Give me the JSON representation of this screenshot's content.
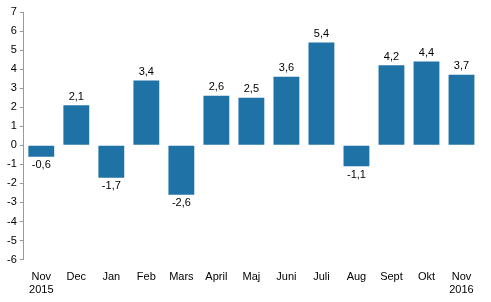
{
  "chart_data": {
    "type": "bar",
    "categories": [
      [
        "Nov",
        "2015"
      ],
      "Dec",
      "Jan",
      "Feb",
      "Mars",
      "April",
      "Maj",
      "Juni",
      "Juli",
      "Aug",
      "Sept",
      "Okt",
      [
        "Nov",
        "2016"
      ]
    ],
    "values": [
      -0.6,
      2.1,
      -1.7,
      3.4,
      -2.6,
      2.6,
      2.5,
      3.6,
      5.4,
      -1.1,
      4.2,
      4.4,
      3.7
    ],
    "value_labels": [
      "-0,6",
      "2,1",
      "-1,7",
      "3,4",
      "-2,6",
      "2,6",
      "2,5",
      "3,6",
      "5,4",
      "-1,1",
      "4,2",
      "4,4",
      "3,7"
    ],
    "color": "#1f72a6",
    "ylim": [
      -6,
      7
    ],
    "yticks": [
      -6,
      -5,
      -4,
      -3,
      -2,
      -1,
      0,
      1,
      2,
      3,
      4,
      5,
      6,
      7
    ],
    "grid": false,
    "data_labels": true
  }
}
